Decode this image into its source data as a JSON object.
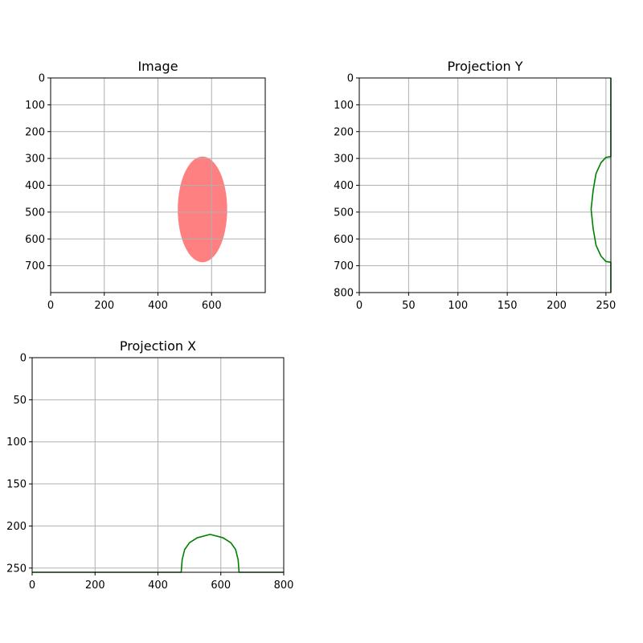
{
  "chart_data": [
    {
      "type": "image",
      "title": "Image",
      "xlim": [
        0,
        800
      ],
      "ylim": [
        800,
        0
      ],
      "xticks": [
        0,
        200,
        400,
        600
      ],
      "yticks": [
        0,
        100,
        200,
        300,
        400,
        500,
        600,
        700
      ],
      "grid": true,
      "shape": {
        "kind": "ellipse",
        "center": [
          566,
          490
        ],
        "radius_x": 92,
        "radius_y": 197,
        "color": "#ff8080"
      }
    },
    {
      "type": "line",
      "title": "Projection Y",
      "xlim": [
        0,
        255
      ],
      "ylim": [
        800,
        0
      ],
      "xticks": [
        0,
        50,
        100,
        150,
        200,
        250
      ],
      "yticks": [
        0,
        100,
        200,
        300,
        400,
        500,
        600,
        700,
        800
      ],
      "grid": true,
      "line_color": "#008000",
      "series": [
        {
          "points": [
            [
              255,
              0
            ],
            [
              255,
              293
            ],
            [
              250,
              296
            ],
            [
              245,
              316
            ],
            [
              240,
              356
            ],
            [
              237,
              420
            ],
            [
              235,
              490
            ],
            [
              237,
              560
            ],
            [
              240,
              624
            ],
            [
              245,
              664
            ],
            [
              250,
              684
            ],
            [
              255,
              687
            ],
            [
              255,
              800
            ]
          ]
        }
      ]
    },
    {
      "type": "line",
      "title": "Projection X",
      "xlim": [
        0,
        800
      ],
      "ylim": [
        255,
        0
      ],
      "xticks": [
        0,
        200,
        400,
        600,
        800
      ],
      "yticks": [
        0,
        50,
        100,
        150,
        200,
        250
      ],
      "grid": true,
      "line_color": "#008000",
      "series": [
        {
          "points": [
            [
              0,
              255
            ],
            [
              474,
              255
            ],
            [
              477,
              240
            ],
            [
              485,
              228
            ],
            [
              500,
              220
            ],
            [
              525,
              214
            ],
            [
              566,
              210
            ],
            [
              607,
              214
            ],
            [
              632,
              220
            ],
            [
              647,
              228
            ],
            [
              655,
              240
            ],
            [
              658,
              255
            ],
            [
              800,
              255
            ]
          ]
        }
      ]
    }
  ]
}
